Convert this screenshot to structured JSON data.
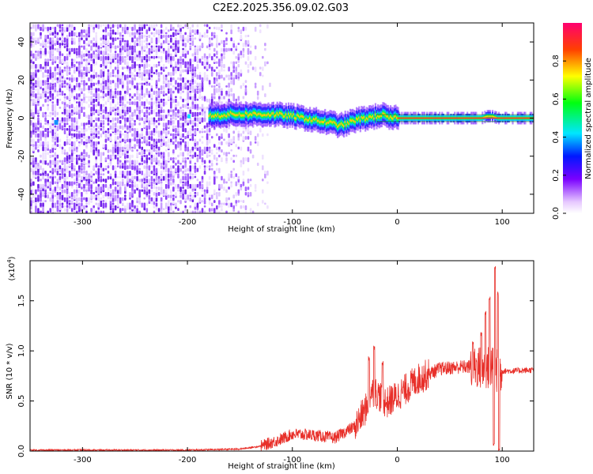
{
  "title": "C2E2.2025.356.09.02.G03",
  "chart_data": [
    {
      "type": "heatmap",
      "name": "spectrogram",
      "xlabel": "Height of straight line (km)",
      "ylabel": "Frequency (Hz)",
      "xlim": [
        -350,
        130
      ],
      "ylim": [
        -50,
        50
      ],
      "xticks": [
        -300,
        -200,
        -100,
        0,
        100
      ],
      "yticks": [
        -40,
        -20,
        0,
        20,
        40
      ],
      "noise_region_x": [
        -350,
        -130
      ],
      "signal_trace": {
        "x": [
          -180,
          -160,
          -140,
          -120,
          -100,
          -90,
          -80,
          -70,
          -60,
          -55,
          -50,
          -45,
          -40,
          -30,
          -20,
          -15,
          -10,
          0,
          20,
          40,
          60,
          80,
          85,
          90,
          95,
          100,
          130
        ],
        "freq": [
          1,
          2,
          2,
          2,
          1,
          0,
          -1,
          -2,
          -3,
          -4,
          -3,
          -2,
          -1,
          0,
          1,
          2,
          0,
          0,
          0,
          0,
          0,
          0,
          1,
          1,
          0,
          0,
          0
        ]
      },
      "colorbar": {
        "label": "Normalized spectral amplitude",
        "range": [
          0,
          1
        ],
        "ticks": [
          0.0,
          0.2,
          0.4,
          0.6,
          0.8
        ]
      }
    },
    {
      "type": "line",
      "name": "snr",
      "xlabel": "Height of straight line (km)",
      "ylabel": "SNR (10 * v/v)",
      "scale_label": "(x10",
      "scale_exp": "4",
      "xlim": [
        -350,
        130
      ],
      "ylim": [
        0,
        1.9
      ],
      "xticks": [
        -300,
        -200,
        -100,
        0,
        100
      ],
      "yticks": [
        0.0,
        0.5,
        1.0,
        1.5
      ],
      "color": "#e8302a",
      "envelope": {
        "x": [
          -350,
          -200,
          -150,
          -130,
          -110,
          -100,
          -80,
          -60,
          -40,
          -30,
          -25,
          -20,
          -10,
          0,
          20,
          40,
          60,
          75,
          85,
          90,
          95,
          97,
          100,
          110,
          130
        ],
        "y": [
          0.01,
          0.01,
          0.02,
          0.05,
          0.12,
          0.17,
          0.16,
          0.13,
          0.25,
          0.42,
          0.6,
          0.58,
          0.48,
          0.55,
          0.72,
          0.82,
          0.84,
          0.84,
          0.82,
          0.85,
          0.8,
          0.8,
          0.8,
          0.8,
          0.81
        ]
      },
      "spikes": [
        {
          "x": -27,
          "y": 0.95
        },
        {
          "x": -22,
          "y": 1.05
        },
        {
          "x": -14,
          "y": 0.9
        },
        {
          "x": 72,
          "y": 1.1
        },
        {
          "x": 80,
          "y": 1.2
        },
        {
          "x": 84,
          "y": 1.4
        },
        {
          "x": 88,
          "y": 1.55
        },
        {
          "x": 93,
          "y": 1.85
        },
        {
          "x": 96,
          "y": 1.6
        }
      ],
      "dips": [
        {
          "x": 92,
          "y": 0.05
        },
        {
          "x": 97,
          "y": 0.0
        }
      ]
    }
  ]
}
